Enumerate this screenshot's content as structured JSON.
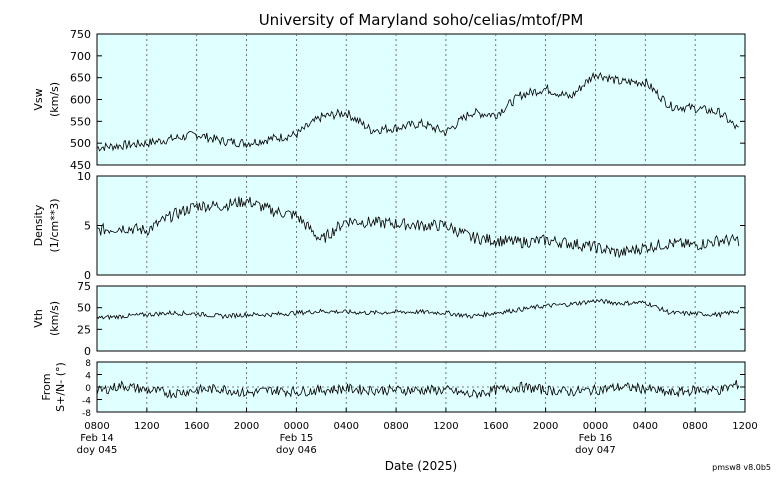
{
  "title": "University of Maryland  soho/celias/mtof/PM",
  "xlabel": "Date (2025)",
  "version": "pmsw8 v8.0b5",
  "colors": {
    "panel_bg": "#e0ffff",
    "line": "#000000",
    "grid": "#555555"
  },
  "chart_data": {
    "type": "line",
    "x_unit": "hours since 2025-02-14 08:00",
    "xlim": [
      0,
      52
    ],
    "x_ticks": [
      "0800",
      "1200",
      "1600",
      "2000",
      "0000",
      "0400",
      "0800",
      "1200",
      "1600",
      "2000",
      "0000",
      "0400",
      "0800",
      "1200"
    ],
    "date_labels": [
      {
        "line1": "Feb 14",
        "line2": "doy 045"
      },
      {
        "line1": "Feb 15",
        "line2": "doy 046"
      },
      {
        "line1": "Feb 16",
        "line2": "doy 047"
      }
    ],
    "panels": [
      {
        "name": "vsw",
        "ylabel": "Vsw",
        "yunit": "(km/s)",
        "ylim": [
          450,
          750
        ],
        "yticks": [
          "450",
          "500",
          "550",
          "600",
          "650",
          "700",
          "750"
        ],
        "x": [
          0,
          2,
          4,
          6,
          8,
          10,
          12,
          14,
          16,
          18,
          20,
          22,
          24,
          26,
          28,
          30,
          32,
          34,
          36,
          38,
          40,
          42,
          44,
          46,
          48,
          50,
          51.5
        ],
        "values": [
          490,
          495,
          500,
          510,
          520,
          505,
          500,
          510,
          520,
          560,
          570,
          530,
          535,
          545,
          525,
          570,
          565,
          610,
          625,
          605,
          660,
          640,
          640,
          585,
          580,
          570,
          530
        ]
      },
      {
        "name": "density",
        "ylabel": "Density",
        "yunit": "(1/cm**3)",
        "ylim": [
          0,
          10
        ],
        "yticks": [
          "0",
          "5",
          "10"
        ],
        "x": [
          0,
          2,
          4,
          6,
          8,
          10,
          12,
          14,
          16,
          18,
          20,
          22,
          24,
          26,
          28,
          30,
          32,
          34,
          36,
          38,
          40,
          42,
          44,
          46,
          48,
          50,
          51.5
        ],
        "values": [
          4.5,
          4.8,
          4.5,
          6.0,
          7.0,
          7.0,
          7.5,
          6.5,
          6.0,
          3.5,
          5.5,
          5.3,
          5.2,
          5.0,
          5.0,
          3.8,
          3.5,
          3.3,
          3.5,
          3.2,
          2.8,
          2.2,
          2.8,
          3.2,
          3.0,
          3.5,
          3.5
        ]
      },
      {
        "name": "vth",
        "ylabel": "Vth",
        "yunit": "(km/s)",
        "ylim": [
          0,
          75
        ],
        "yticks": [
          "0",
          "25",
          "50",
          "75"
        ],
        "x": [
          0,
          2,
          4,
          6,
          8,
          10,
          12,
          14,
          16,
          18,
          20,
          22,
          24,
          26,
          28,
          30,
          32,
          34,
          36,
          38,
          40,
          42,
          44,
          46,
          48,
          50,
          51.5
        ],
        "values": [
          38,
          40,
          42,
          44,
          43,
          40,
          42,
          42,
          44,
          46,
          45,
          44,
          45,
          45,
          44,
          40,
          44,
          48,
          52,
          54,
          58,
          55,
          56,
          44,
          43,
          42,
          46
        ]
      },
      {
        "name": "flow",
        "ylabel": "From",
        "yunit": "S+/N- (°)",
        "ylim": [
          -8,
          8
        ],
        "yticks": [
          "-8",
          "-4",
          "0",
          "4",
          "8"
        ],
        "x": [
          0,
          2,
          4,
          6,
          8,
          10,
          12,
          14,
          16,
          18,
          20,
          22,
          24,
          26,
          28,
          30,
          32,
          34,
          36,
          38,
          40,
          42,
          44,
          46,
          48,
          50,
          51.5
        ],
        "values": [
          -1.5,
          0.5,
          -1,
          -2,
          -1,
          -0.5,
          -2,
          -1,
          -1.5,
          -1,
          -0.5,
          -1,
          -1,
          -1,
          -1,
          -2.5,
          -1,
          0,
          -1,
          -1.5,
          -1,
          0,
          -0.5,
          -2,
          -1,
          -1,
          1
        ]
      }
    ]
  }
}
